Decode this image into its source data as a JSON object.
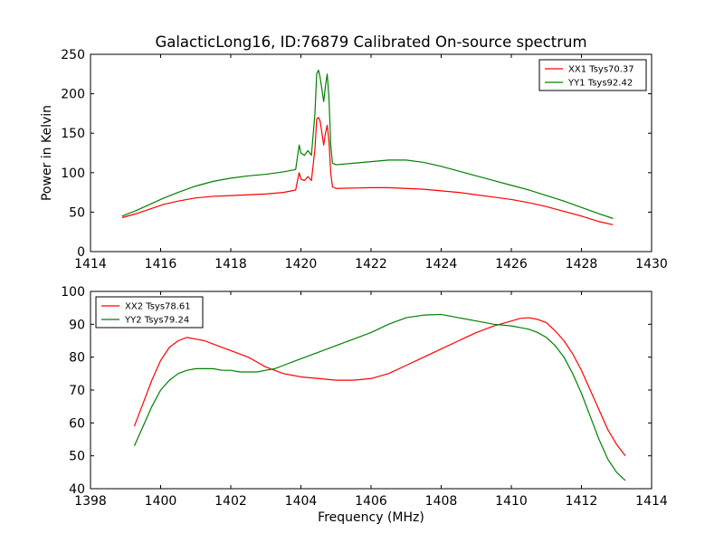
{
  "chart_data": [
    {
      "type": "line",
      "title": "GalacticLong16, ID:76879 Calibrated On-source spectrum",
      "xlabel": "",
      "ylabel": "Power in Kelvin",
      "xlim": [
        1414,
        1430
      ],
      "ylim": [
        0,
        250
      ],
      "xticks": [
        1414,
        1416,
        1418,
        1420,
        1422,
        1424,
        1426,
        1428,
        1430
      ],
      "yticks": [
        0,
        50,
        100,
        150,
        200,
        250
      ],
      "grid": false,
      "legend": "top-right",
      "series": [
        {
          "name": "XX1 Tsys70.37",
          "color": "#ff0000",
          "x": [
            1414.9,
            1415.3,
            1415.7,
            1416.1,
            1416.5,
            1417.0,
            1417.5,
            1418.0,
            1418.5,
            1419.0,
            1419.5,
            1419.85,
            1419.95,
            1420.0,
            1420.1,
            1420.2,
            1420.3,
            1420.4,
            1420.45,
            1420.5,
            1420.55,
            1420.6,
            1420.65,
            1420.7,
            1420.75,
            1420.8,
            1420.85,
            1420.9,
            1421.0,
            1421.5,
            1422.0,
            1422.5,
            1423.0,
            1423.5,
            1424.0,
            1424.5,
            1425.0,
            1425.5,
            1426.0,
            1426.5,
            1427.0,
            1427.5,
            1428.0,
            1428.5,
            1428.9
          ],
          "values": [
            43,
            48,
            54,
            60,
            64,
            68,
            70,
            71,
            72,
            73,
            75,
            78,
            100,
            92,
            90,
            95,
            90,
            130,
            168,
            170,
            165,
            150,
            135,
            150,
            160,
            140,
            100,
            82,
            80,
            80.5,
            81,
            81,
            80,
            79,
            77,
            75,
            72,
            69,
            66,
            62,
            57,
            51,
            45,
            38,
            34
          ]
        },
        {
          "name": "YY1 Tsys92.42",
          "color": "#008000",
          "x": [
            1414.9,
            1415.3,
            1415.7,
            1416.1,
            1416.5,
            1417.0,
            1417.5,
            1418.0,
            1418.5,
            1419.0,
            1419.5,
            1419.85,
            1419.95,
            1420.0,
            1420.1,
            1420.2,
            1420.3,
            1420.4,
            1420.45,
            1420.5,
            1420.55,
            1420.6,
            1420.65,
            1420.7,
            1420.75,
            1420.8,
            1420.85,
            1420.9,
            1421.0,
            1421.5,
            1422.0,
            1422.5,
            1423.0,
            1423.5,
            1424.0,
            1424.5,
            1425.0,
            1425.5,
            1426.0,
            1426.5,
            1427.0,
            1427.5,
            1428.0,
            1428.5,
            1428.9
          ],
          "values": [
            45,
            52,
            60,
            68,
            75,
            83,
            89,
            93,
            96,
            98,
            101,
            104,
            135,
            125,
            122,
            128,
            122,
            175,
            225,
            230,
            220,
            205,
            190,
            210,
            225,
            195,
            135,
            112,
            110,
            112,
            114,
            116,
            116,
            113,
            108,
            102,
            96,
            90,
            84,
            78,
            71,
            64,
            56,
            48,
            42
          ]
        }
      ]
    },
    {
      "type": "line",
      "title": "",
      "xlabel": "Frequency (MHz)",
      "ylabel": "",
      "xlim": [
        1398,
        1414
      ],
      "ylim": [
        40,
        100
      ],
      "xticks": [
        1398,
        1400,
        1402,
        1404,
        1406,
        1408,
        1410,
        1412,
        1414
      ],
      "yticks": [
        40,
        50,
        60,
        70,
        80,
        90,
        100
      ],
      "grid": false,
      "legend": "top-left",
      "series": [
        {
          "name": "XX2 Tsys78.61",
          "color": "#ff0000",
          "x": [
            1399.25,
            1399.5,
            1399.75,
            1400.0,
            1400.25,
            1400.5,
            1400.75,
            1401.0,
            1401.25,
            1401.5,
            1401.75,
            1402.0,
            1402.25,
            1402.5,
            1402.75,
            1403.0,
            1403.25,
            1403.5,
            1403.75,
            1404.0,
            1404.5,
            1405.0,
            1405.5,
            1406.0,
            1406.5,
            1407.0,
            1407.5,
            1408.0,
            1408.5,
            1409.0,
            1409.5,
            1410.0,
            1410.25,
            1410.5,
            1410.75,
            1411.0,
            1411.25,
            1411.5,
            1411.75,
            1412.0,
            1412.25,
            1412.5,
            1412.75,
            1413.0,
            1413.25
          ],
          "values": [
            59,
            66,
            73,
            79,
            83,
            85,
            86,
            85.5,
            85,
            84,
            83,
            82,
            81,
            80,
            78.5,
            77,
            76,
            75,
            74.5,
            74,
            73.5,
            73,
            73,
            73.5,
            75,
            77.5,
            80,
            82.5,
            85,
            87.5,
            89.5,
            91,
            91.8,
            92,
            91.5,
            90.5,
            88,
            85,
            81,
            76,
            70,
            64,
            58,
            53.5,
            50
          ]
        },
        {
          "name": "YY2 Tsys79.24",
          "color": "#008000",
          "x": [
            1399.25,
            1399.5,
            1399.75,
            1400.0,
            1400.25,
            1400.5,
            1400.75,
            1401.0,
            1401.25,
            1401.5,
            1401.75,
            1402.0,
            1402.25,
            1402.5,
            1402.75,
            1403.0,
            1403.25,
            1403.5,
            1403.75,
            1404.0,
            1404.5,
            1405.0,
            1405.5,
            1406.0,
            1406.5,
            1407.0,
            1407.5,
            1408.0,
            1408.5,
            1409.0,
            1409.5,
            1410.0,
            1410.25,
            1410.5,
            1410.75,
            1411.0,
            1411.25,
            1411.5,
            1411.75,
            1412.0,
            1412.25,
            1412.5,
            1412.75,
            1413.0,
            1413.25
          ],
          "values": [
            53,
            59,
            65,
            70,
            73,
            75,
            76,
            76.5,
            76.5,
            76.5,
            76,
            76,
            75.5,
            75.5,
            75.5,
            76,
            76.5,
            77.5,
            78.5,
            79.5,
            81.5,
            83.5,
            85.5,
            87.5,
            90,
            92,
            92.8,
            93,
            92,
            91,
            90,
            89.5,
            89,
            88.5,
            87.5,
            86,
            83.5,
            80,
            75,
            69,
            62,
            55,
            49,
            45,
            42.5
          ]
        }
      ]
    }
  ]
}
